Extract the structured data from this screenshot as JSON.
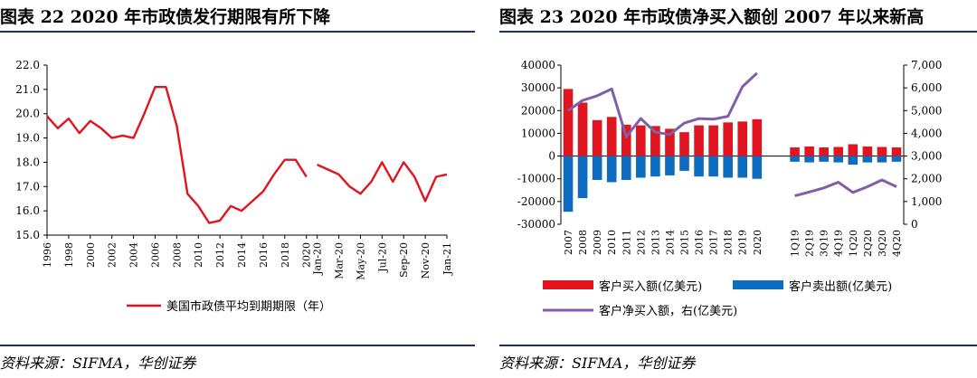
{
  "left": {
    "title": "图表 22   2020 年市政债发行期限有所下降",
    "source": "资料来源：SIFMA，华创证券"
  },
  "right": {
    "title": "图表 23   2020 年市政债净买入额创 2007 年以来新高",
    "source": "资料来源：SIFMA，华创证券"
  },
  "chart_data": [
    {
      "type": "line",
      "title": "",
      "xlabel": "",
      "ylabel": "",
      "ylim": [
        15.0,
        22.0
      ],
      "yticks": [
        "15.0",
        "16.0",
        "17.0",
        "18.0",
        "19.0",
        "20.0",
        "21.0",
        "22.0"
      ],
      "color": "#e0151f",
      "series": [
        {
          "name": "美国市政债平均到期期限（年）",
          "segments": [
            {
              "x": [
                1996,
                1997,
                1998,
                1999,
                2000,
                2001,
                2002,
                2003,
                2004,
                2005,
                2006,
                2007,
                2008,
                2009,
                2010,
                2011,
                2012,
                2013,
                2014,
                2015,
                2016,
                2017,
                2018,
                2019,
                2020
              ],
              "values": [
                19.9,
                19.4,
                19.8,
                19.2,
                19.7,
                19.4,
                19.0,
                19.1,
                19.0,
                20.0,
                21.1,
                21.1,
                19.5,
                16.7,
                16.2,
                15.5,
                15.6,
                16.2,
                16.0,
                16.4,
                16.8,
                17.5,
                18.1,
                18.1,
                17.4
              ]
            },
            {
              "x": [
                "Jan-20",
                "Feb-20",
                "Mar-20",
                "Apr-20",
                "May-20",
                "Jun-20",
                "Jul-20",
                "Aug-20",
                "Sep-20",
                "Oct-20",
                "Nov-20",
                "Dec-20",
                "Jan-21"
              ],
              "values": [
                17.9,
                17.7,
                17.5,
                17.0,
                16.7,
                17.2,
                18.0,
                17.2,
                18.0,
                17.4,
                16.4,
                17.4,
                17.5
              ]
            }
          ]
        }
      ],
      "xtick_labels": [
        "1996",
        "1998",
        "2000",
        "2002",
        "2004",
        "2006",
        "2008",
        "2010",
        "2012",
        "2014",
        "2016",
        "2018",
        "2020",
        "Jan-20",
        "Mar-20",
        "May-20",
        "Jul-20",
        "Sep-20",
        "Nov-20",
        "Jan-21"
      ],
      "legend": "bottom"
    },
    {
      "type": "bar",
      "title": "",
      "ylim_left": [
        -30000,
        40000
      ],
      "yticks_left": [
        "-30000",
        "-20000",
        "-10000",
        "0",
        "10000",
        "20000",
        "30000",
        "40000"
      ],
      "ylim_right": [
        0,
        7000
      ],
      "yticks_right": [
        "0",
        "1,000",
        "2,000",
        "3,000",
        "4,000",
        "5,000",
        "6,000",
        "7,000"
      ],
      "groups": [
        {
          "categories": [
            "2007",
            "2008",
            "2009",
            "2010",
            "2011",
            "2012",
            "2013",
            "2014",
            "2015",
            "2016",
            "2017",
            "2018",
            "2019",
            "2020"
          ],
          "buy": [
            29500,
            23500,
            15800,
            17200,
            13800,
            13500,
            13200,
            12000,
            10500,
            13500,
            13500,
            14800,
            15200,
            16200
          ],
          "sell": [
            -24500,
            -18500,
            -10500,
            -11500,
            -10500,
            -9500,
            -9000,
            -8500,
            -6500,
            -9000,
            -9000,
            -9500,
            -9500,
            -10000
          ],
          "net": [
            5000,
            5450,
            5650,
            5950,
            3850,
            4650,
            4050,
            3950,
            4450,
            4650,
            4620,
            4750,
            6050,
            6650
          ]
        },
        {
          "categories": [
            "1Q19",
            "2Q19",
            "3Q19",
            "4Q19",
            "1Q20",
            "2Q20",
            "3Q20",
            "4Q20"
          ],
          "buy": [
            3800,
            4200,
            3800,
            4000,
            5200,
            4200,
            4000,
            3800
          ],
          "sell": [
            -2500,
            -2800,
            -2500,
            -2800,
            -3800,
            -2800,
            -2800,
            -2500
          ],
          "net": [
            1250,
            1420,
            1600,
            1850,
            1400,
            1650,
            1950,
            1650
          ]
        }
      ],
      "colors": {
        "buy": "#e0151f",
        "sell": "#0d6cc0",
        "net": "#7f5fa8"
      },
      "legend": {
        "buy": "客户买入额(亿美元)",
        "sell": "客户卖出额(亿美元)",
        "net": "客户净买入额，右(亿美元)"
      }
    }
  ]
}
